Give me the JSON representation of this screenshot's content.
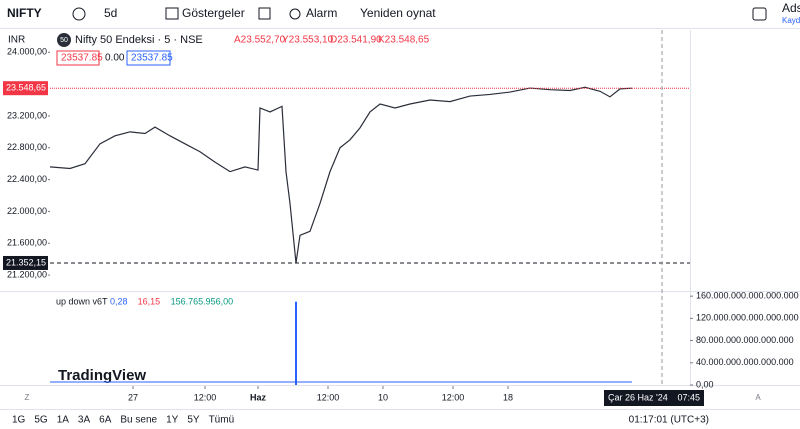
{
  "toolbar": {
    "symbol": "NIFTY",
    "interval": "5d",
    "indicators": "Göstergeler",
    "alert": "Alarm",
    "replay": "Yeniden oynat",
    "user": "Adsı",
    "user_sub": "Kayde",
    "currency": "INR"
  },
  "header": {
    "badge": "50",
    "ohlc": [
      "A23.552,70",
      "Y23.553,10",
      "D23.541,90",
      "K23.548,65"
    ],
    "inputs": [
      "23537.85",
      "0.00",
      "23537.85"
    ]
  },
  "chart_data": [
    {
      "type": "line",
      "title": "Nifty 50 Endeksi · 5 · NSE",
      "color": "#2a2e39",
      "x": [
        0,
        20,
        35,
        50,
        65,
        80,
        95,
        105,
        120,
        135,
        150,
        165,
        180,
        195,
        208,
        210,
        220,
        232,
        236,
        240,
        246,
        250,
        260,
        270,
        280,
        290,
        300,
        310,
        320,
        330,
        345,
        360,
        380,
        400,
        420,
        440,
        460,
        480,
        500,
        520,
        535,
        550,
        560,
        570,
        582
      ],
      "values": [
        22560,
        22540,
        22600,
        22850,
        22950,
        23000,
        22980,
        23060,
        22950,
        22850,
        22750,
        22620,
        22500,
        22560,
        22520,
        23300,
        23250,
        23320,
        22500,
        22100,
        21352,
        21700,
        21750,
        22100,
        22500,
        22800,
        22900,
        23050,
        23250,
        23350,
        23300,
        23350,
        23400,
        23380,
        23450,
        23470,
        23500,
        23550,
        23530,
        23520,
        23560,
        23510,
        23440,
        23540,
        23549
      ],
      "xlim": [
        0,
        640
      ],
      "ylim": [
        21000,
        24280
      ],
      "xticks": [
        {
          "value": 83,
          "label": "27"
        },
        {
          "value": 155,
          "label": "12:00"
        },
        {
          "value": 208,
          "label": "Haz"
        },
        {
          "value": 278,
          "label": "12:00"
        },
        {
          "value": 333,
          "label": "10"
        },
        {
          "value": 403,
          "label": "12:00"
        },
        {
          "value": 458,
          "label": "18"
        }
      ],
      "yticks": [
        {
          "value": 21200,
          "label": "21.200,00"
        },
        {
          "value": 21600,
          "label": "21.600,00"
        },
        {
          "value": 22000,
          "label": "22.000,00"
        },
        {
          "value": 22400,
          "label": "22.400,00"
        },
        {
          "value": 22800,
          "label": "22.800,00"
        },
        {
          "value": 23200,
          "label": "23.200,00"
        },
        {
          "value": 24000,
          "label": "24.000,00"
        }
      ],
      "markers": [
        {
          "value": 23548.65,
          "label": "23.548,65",
          "color": "#f23645"
        },
        {
          "value": 21352.15,
          "label": "21.352,15",
          "color": "#131722"
        }
      ],
      "cursor": {
        "value": 612,
        "label": "Çar 26 Haz '24",
        "time": "07:45"
      }
    },
    {
      "type": "bar",
      "title": "up down v6T",
      "color": "#2962ff",
      "readouts": [
        {
          "label": "0,28",
          "color": "#2962ff"
        },
        {
          "label": "16,15",
          "color": "#f23645"
        },
        {
          "label": "156.765.956,00",
          "color": "#089981"
        }
      ],
      "x": [
        246
      ],
      "values": [
        150000000000000000
      ],
      "xlim": [
        0,
        640
      ],
      "ylim": [
        0,
        167500000000000000
      ],
      "yticks": [
        {
          "value": 0,
          "label": "0,00"
        },
        {
          "value": 40000000000000000,
          "label": "40.000.000.000.000.000"
        },
        {
          "value": 80000000000000000,
          "label": "80.000.000.000.000.000"
        },
        {
          "value": 120000000000000000,
          "label": "120.000.000.000.000.000"
        },
        {
          "value": 160000000000000000,
          "label": "160.000.000.000.000.000"
        }
      ]
    }
  ],
  "watermark": "TradingView",
  "bottom_bar": {
    "ranges": [
      "1G",
      "5G",
      "1A",
      "3A",
      "6A",
      "Bu sene",
      "1Y",
      "5Y",
      "Tümü"
    ],
    "clock": "01:17:01 (UTC+3)",
    "z": "Z",
    "a": "A"
  }
}
